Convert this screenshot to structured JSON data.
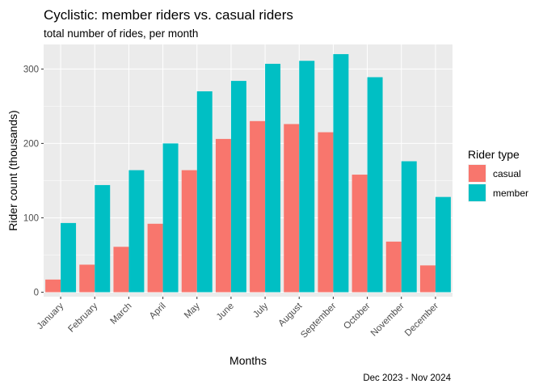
{
  "chart_data": {
    "type": "bar",
    "title": "Cyclistic: member riders vs. casual riders",
    "subtitle": "total number of rides, per month",
    "xlabel": "Months",
    "ylabel": "Rider count (thousands)",
    "caption": "Dec 2023 - Nov 2024",
    "categories": [
      "January",
      "February",
      "March",
      "April",
      "May",
      "June",
      "July",
      "August",
      "September",
      "October",
      "November",
      "December"
    ],
    "series": [
      {
        "name": "casual",
        "color": "#F8766D",
        "values": [
          17,
          37,
          61,
          92,
          164,
          206,
          230,
          226,
          215,
          158,
          68,
          36
        ]
      },
      {
        "name": "member",
        "color": "#00BFC4",
        "values": [
          93,
          144,
          164,
          200,
          270,
          284,
          307,
          311,
          320,
          289,
          176,
          128
        ]
      }
    ],
    "ylim": [
      -6,
      333
    ],
    "yticks": [
      0,
      100,
      200,
      300
    ],
    "grid": true,
    "legend": {
      "title": "Rider type",
      "position": "right"
    },
    "panel_background": "#EBEBEB",
    "grid_color": "#FFFFFF"
  }
}
